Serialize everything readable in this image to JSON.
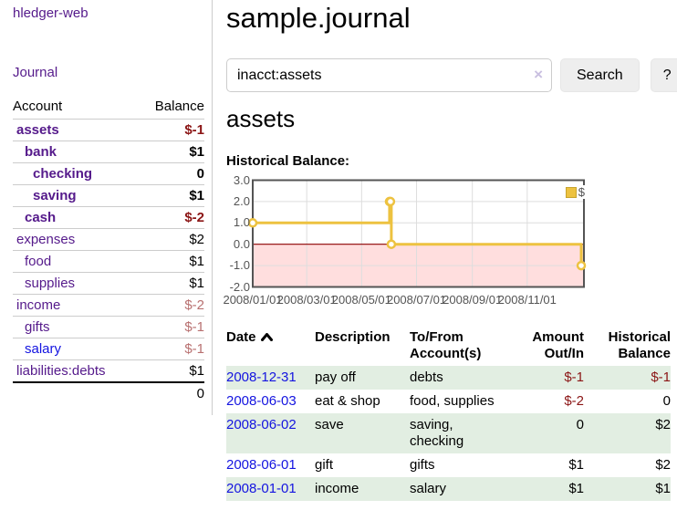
{
  "app": {
    "title": "hledger-web"
  },
  "sidebar": {
    "journal_link": "Journal",
    "table": {
      "account_header": "Account",
      "balance_header": "Balance",
      "rows": [
        {
          "account": "assets",
          "balance": "$-1"
        },
        {
          "account": "bank",
          "balance": "$1"
        },
        {
          "account": "checking",
          "balance": "0"
        },
        {
          "account": "saving",
          "balance": "$1"
        },
        {
          "account": "cash",
          "balance": "$-2"
        },
        {
          "account": "expenses",
          "balance": "$2"
        },
        {
          "account": "food",
          "balance": "$1"
        },
        {
          "account": "supplies",
          "balance": "$1"
        },
        {
          "account": "income",
          "balance": "$-2"
        },
        {
          "account": "gifts",
          "balance": "$-1"
        },
        {
          "account": "salary",
          "balance": "$-1"
        },
        {
          "account": "liabilities:debts",
          "balance": "$1"
        }
      ],
      "total": "0"
    }
  },
  "main": {
    "title": "sample.journal",
    "search": {
      "value": "inacct:assets",
      "clear_icon": "×",
      "search_button": "Search",
      "help_button": "?"
    },
    "account_title": "assets",
    "chart_title": "Historical Balance:"
  },
  "chart_data": {
    "type": "line",
    "step": true,
    "title": "Historical Balance",
    "series": [
      {
        "name": "$",
        "color": "#edc240",
        "points": [
          [
            "2008-01-01",
            1
          ],
          [
            "2008-06-01",
            2
          ],
          [
            "2008-06-02",
            2
          ],
          [
            "2008-06-03",
            0
          ],
          [
            "2008-12-31",
            -1
          ]
        ]
      }
    ],
    "ylim": [
      -2.0,
      3.0
    ],
    "y_ticks": [
      "3.0",
      "2.0",
      "1.0",
      "0.0",
      "-1.0",
      "-2.0"
    ],
    "x_ticks": [
      "2008/01/01",
      "2008/03/01",
      "2008/05/01",
      "2008/07/01",
      "2008/09/01",
      "2008/11/01"
    ],
    "x_domain": [
      "2008-01-01",
      "2009-01-03"
    ],
    "grid": true,
    "legend_position": "top-right",
    "negative_region_color": "#ffdede",
    "zero_line_color": "#8b0000",
    "grid_color": "#dddddd",
    "border_color": "#545454"
  },
  "register": {
    "headers": {
      "date": "Date",
      "description": "Description",
      "accounts": "To/From Account(s)",
      "amount": "Amount Out/In",
      "balance": "Historical Balance"
    },
    "rows": [
      {
        "date": "2008-12-31",
        "description": "pay off",
        "accounts": "debts",
        "amount": "$-1",
        "balance": "$-1"
      },
      {
        "date": "2008-06-03",
        "description": "eat & shop",
        "accounts": "food, supplies",
        "amount": "$-2",
        "balance": "0"
      },
      {
        "date": "2008-06-02",
        "description": "save",
        "accounts": "saving, checking",
        "amount": "0",
        "balance": "$2"
      },
      {
        "date": "2008-06-01",
        "description": "gift",
        "accounts": "gifts",
        "amount": "$1",
        "balance": "$2"
      },
      {
        "date": "2008-01-01",
        "description": "income",
        "accounts": "salary",
        "amount": "$1",
        "balance": "$1"
      }
    ]
  },
  "colors": {
    "link_purple": "#551a8b",
    "link_blue": "#1414e0",
    "negative_strong": "#8b1515",
    "negative_dim": "#b87070",
    "series_yellow": "#edc240",
    "row_green": "#e2eee2"
  }
}
